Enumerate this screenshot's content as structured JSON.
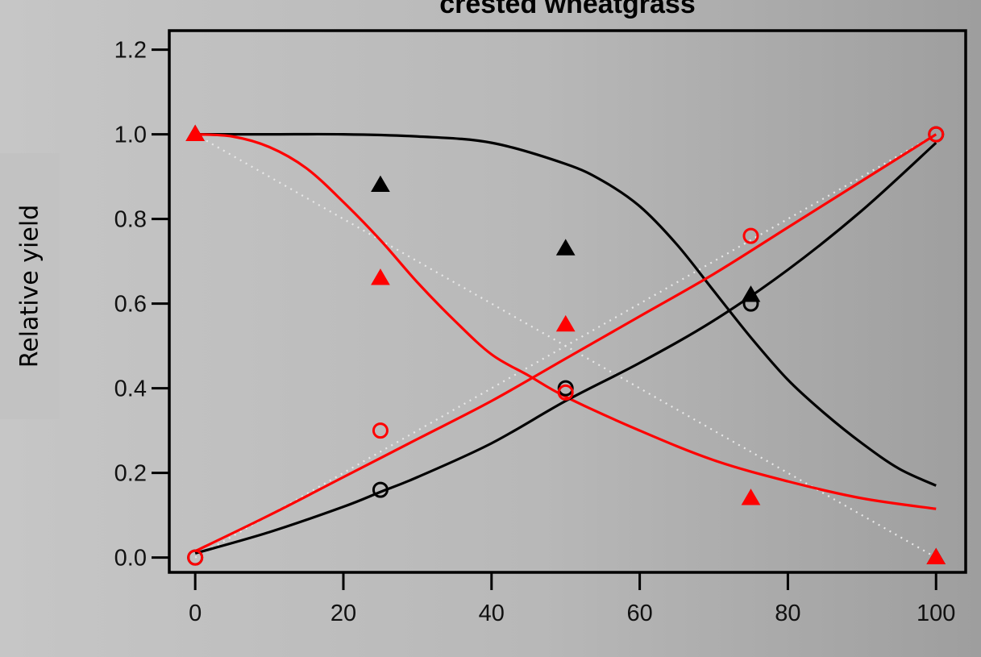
{
  "chart_data": {
    "type": "scatter",
    "title": "crested wheatgrass",
    "xlabel": "",
    "ylabel": "Relative yield",
    "xlim": [
      -3.5,
      104
    ],
    "ylim": [
      -0.035,
      1.245
    ],
    "xticks": [
      0,
      20,
      40,
      60,
      80,
      100
    ],
    "yticks": [
      0.0,
      0.2,
      0.4,
      0.6,
      0.8,
      1.0,
      1.2
    ],
    "reference_lines": [
      {
        "x": [
          0,
          100
        ],
        "y": [
          0,
          1
        ],
        "color": "#e8e8e8",
        "style": "dotted"
      },
      {
        "x": [
          0,
          100
        ],
        "y": [
          1,
          0
        ],
        "color": "#e8e8e8",
        "style": "dotted"
      }
    ],
    "series": [
      {
        "color": "#000000",
        "marker": "triangle",
        "x": [
          0,
          25,
          50,
          75,
          100
        ],
        "y": [
          1.0,
          0.88,
          0.73,
          0.62,
          0.0
        ]
      },
      {
        "color": "#ff0000",
        "marker": "triangle",
        "x": [
          0,
          25,
          50,
          75,
          100
        ],
        "y": [
          1.0,
          0.66,
          0.55,
          0.14,
          0.0
        ]
      },
      {
        "color": "#000000",
        "marker": "circle",
        "x": [
          0,
          25,
          50,
          75,
          100
        ],
        "y": [
          0.0,
          0.16,
          0.4,
          0.6,
          1.0
        ]
      },
      {
        "color": "#ff0000",
        "marker": "circle",
        "x": [
          0,
          25,
          50,
          75,
          100
        ],
        "y": [
          0.0,
          0.3,
          0.39,
          0.76,
          1.0
        ]
      }
    ],
    "fitted_curves": [
      {
        "color": "#000000",
        "x": [
          0,
          10,
          20,
          30,
          40,
          50,
          55,
          60,
          65,
          70,
          75,
          80,
          85,
          90,
          95,
          100
        ],
        "y": [
          1.0,
          1.0,
          1.0,
          0.995,
          0.98,
          0.93,
          0.89,
          0.83,
          0.74,
          0.63,
          0.52,
          0.42,
          0.34,
          0.27,
          0.21,
          0.17
        ]
      },
      {
        "color": "#ff0000",
        "x": [
          0,
          5,
          10,
          15,
          20,
          25,
          30,
          35,
          40,
          45,
          50,
          60,
          70,
          80,
          90,
          100
        ],
        "y": [
          1.0,
          0.995,
          0.97,
          0.92,
          0.84,
          0.75,
          0.65,
          0.56,
          0.48,
          0.43,
          0.38,
          0.3,
          0.23,
          0.18,
          0.14,
          0.115
        ]
      },
      {
        "color": "#000000",
        "x": [
          0,
          10,
          20,
          25,
          30,
          40,
          50,
          60,
          70,
          80,
          90,
          100
        ],
        "y": [
          0.01,
          0.06,
          0.12,
          0.155,
          0.19,
          0.27,
          0.37,
          0.46,
          0.56,
          0.68,
          0.82,
          0.98
        ]
      },
      {
        "color": "#ff0000",
        "x": [
          0,
          10,
          20,
          30,
          40,
          50,
          60,
          70,
          80,
          90,
          100
        ],
        "y": [
          0.015,
          0.1,
          0.19,
          0.28,
          0.37,
          0.47,
          0.57,
          0.67,
          0.78,
          0.89,
          1.0
        ]
      }
    ]
  }
}
